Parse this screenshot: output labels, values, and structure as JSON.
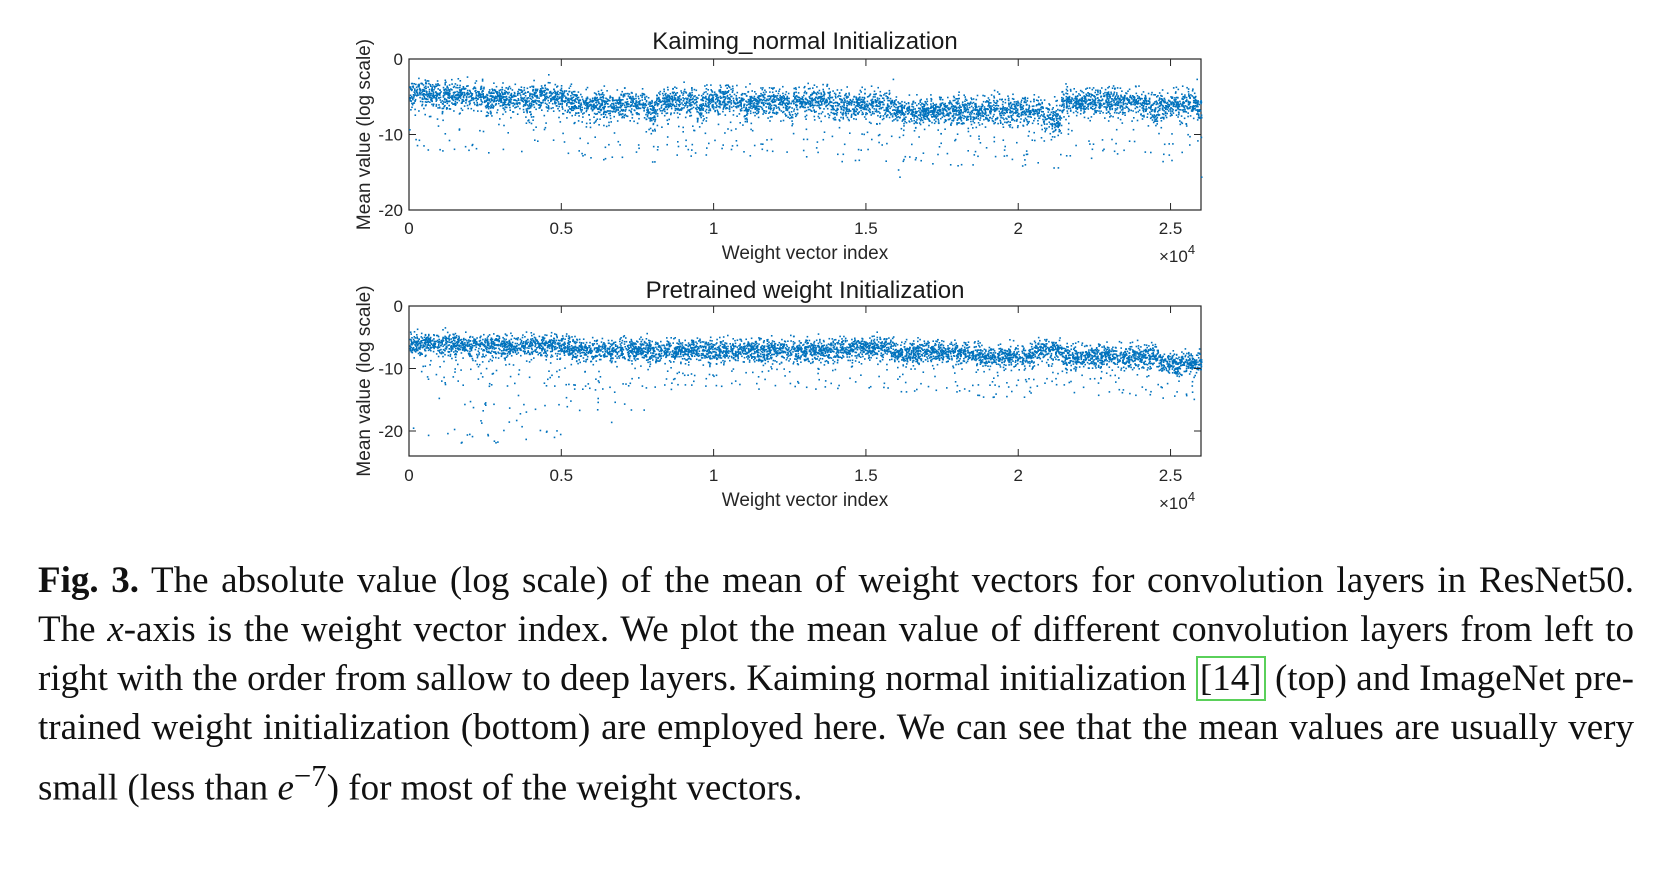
{
  "chart_data": [
    {
      "type": "scatter",
      "title": "Kaiming_normal Initialization",
      "xlabel": "Weight vector index",
      "ylabel": "Mean value (log scale)",
      "x_multiplier": "×10",
      "x_multiplier_exp": "4",
      "xlim": [
        0,
        26000
      ],
      "ylim": [
        -20,
        0
      ],
      "xticks": [
        0,
        5000,
        10000,
        15000,
        20000,
        25000
      ],
      "xtick_labels": [
        "0",
        "0.5",
        "1",
        "1.5",
        "2",
        "2.5"
      ],
      "yticks": [
        0,
        -10,
        -20
      ],
      "ytick_labels": [
        "0",
        "-10",
        "-20"
      ],
      "color": "#0072bd",
      "segments": [
        {
          "x": [
            0,
            1100
          ],
          "mean": -4.5
        },
        {
          "x": [
            1100,
            2600
          ],
          "mean": -4.8
        },
        {
          "x": [
            2600,
            4000
          ],
          "mean": -5.2
        },
        {
          "x": [
            4000,
            5400
          ],
          "mean": -5.0
        },
        {
          "x": [
            5400,
            8100
          ],
          "mean": -6.0
        },
        {
          "x": [
            8100,
            9600
          ],
          "mean": -5.5
        },
        {
          "x": [
            9600,
            11100
          ],
          "mean": -5.5
        },
        {
          "x": [
            11100,
            12600
          ],
          "mean": -5.6
        },
        {
          "x": [
            12600,
            14000
          ],
          "mean": -5.4
        },
        {
          "x": [
            14000,
            16100
          ],
          "mean": -6.0
        },
        {
          "x": [
            16100,
            21400
          ],
          "mean": -6.8
        },
        {
          "x": [
            21400,
            24600
          ],
          "mean": -5.6
        },
        {
          "x": [
            24600,
            26000
          ],
          "mean": -6.0
        }
      ]
    },
    {
      "type": "scatter",
      "title": "Pretrained weight Initialization",
      "xlabel": "Weight vector index",
      "ylabel": "Mean value (log scale)",
      "x_multiplier": "×10",
      "x_multiplier_exp": "4",
      "xlim": [
        0,
        26000
      ],
      "ylim": [
        -24,
        0
      ],
      "xticks": [
        0,
        5000,
        10000,
        15000,
        20000,
        25000
      ],
      "xtick_labels": [
        "0",
        "0.5",
        "1",
        "1.5",
        "2",
        "2.5"
      ],
      "yticks": [
        0,
        -10,
        -20
      ],
      "ytick_labels": [
        "0",
        "-10",
        "-20"
      ],
      "color": "#0072bd",
      "segments": [
        {
          "x": [
            0,
            1500
          ],
          "mean": -6.0
        },
        {
          "x": [
            1500,
            5300
          ],
          "mean": -6.3
        },
        {
          "x": [
            5300,
            9600
          ],
          "mean": -7.0
        },
        {
          "x": [
            9600,
            14500
          ],
          "mean": -7.0
        },
        {
          "x": [
            14500,
            15900
          ],
          "mean": -6.6
        },
        {
          "x": [
            15900,
            18600
          ],
          "mean": -7.4
        },
        {
          "x": [
            18600,
            20500
          ],
          "mean": -8.0
        },
        {
          "x": [
            20500,
            21400
          ],
          "mean": -7.0
        },
        {
          "x": [
            21400,
            24600
          ],
          "mean": -8.0
        },
        {
          "x": [
            24600,
            26000
          ],
          "mean": -9.0
        }
      ]
    }
  ],
  "caption": {
    "label": "Fig. 3.",
    "part1": " The absolute value (log scale) of the mean of weight vectors for convolution layers in ResNet50. The ",
    "x_symbol": "x",
    "part2": "-axis is the weight vector index. We plot the mean value of different convolution layers from left to right with the order from sallow to deep layers. Kaiming normal initialization ",
    "ref": "[14]",
    "part3": " (top) and ImageNet pre-trained weight initialization (bottom) are employed here. We can see that the mean values are usually very small (less than ",
    "e_symbol": "e",
    "e_exponent": "−7",
    "part4": ") for most of the weight vectors."
  }
}
